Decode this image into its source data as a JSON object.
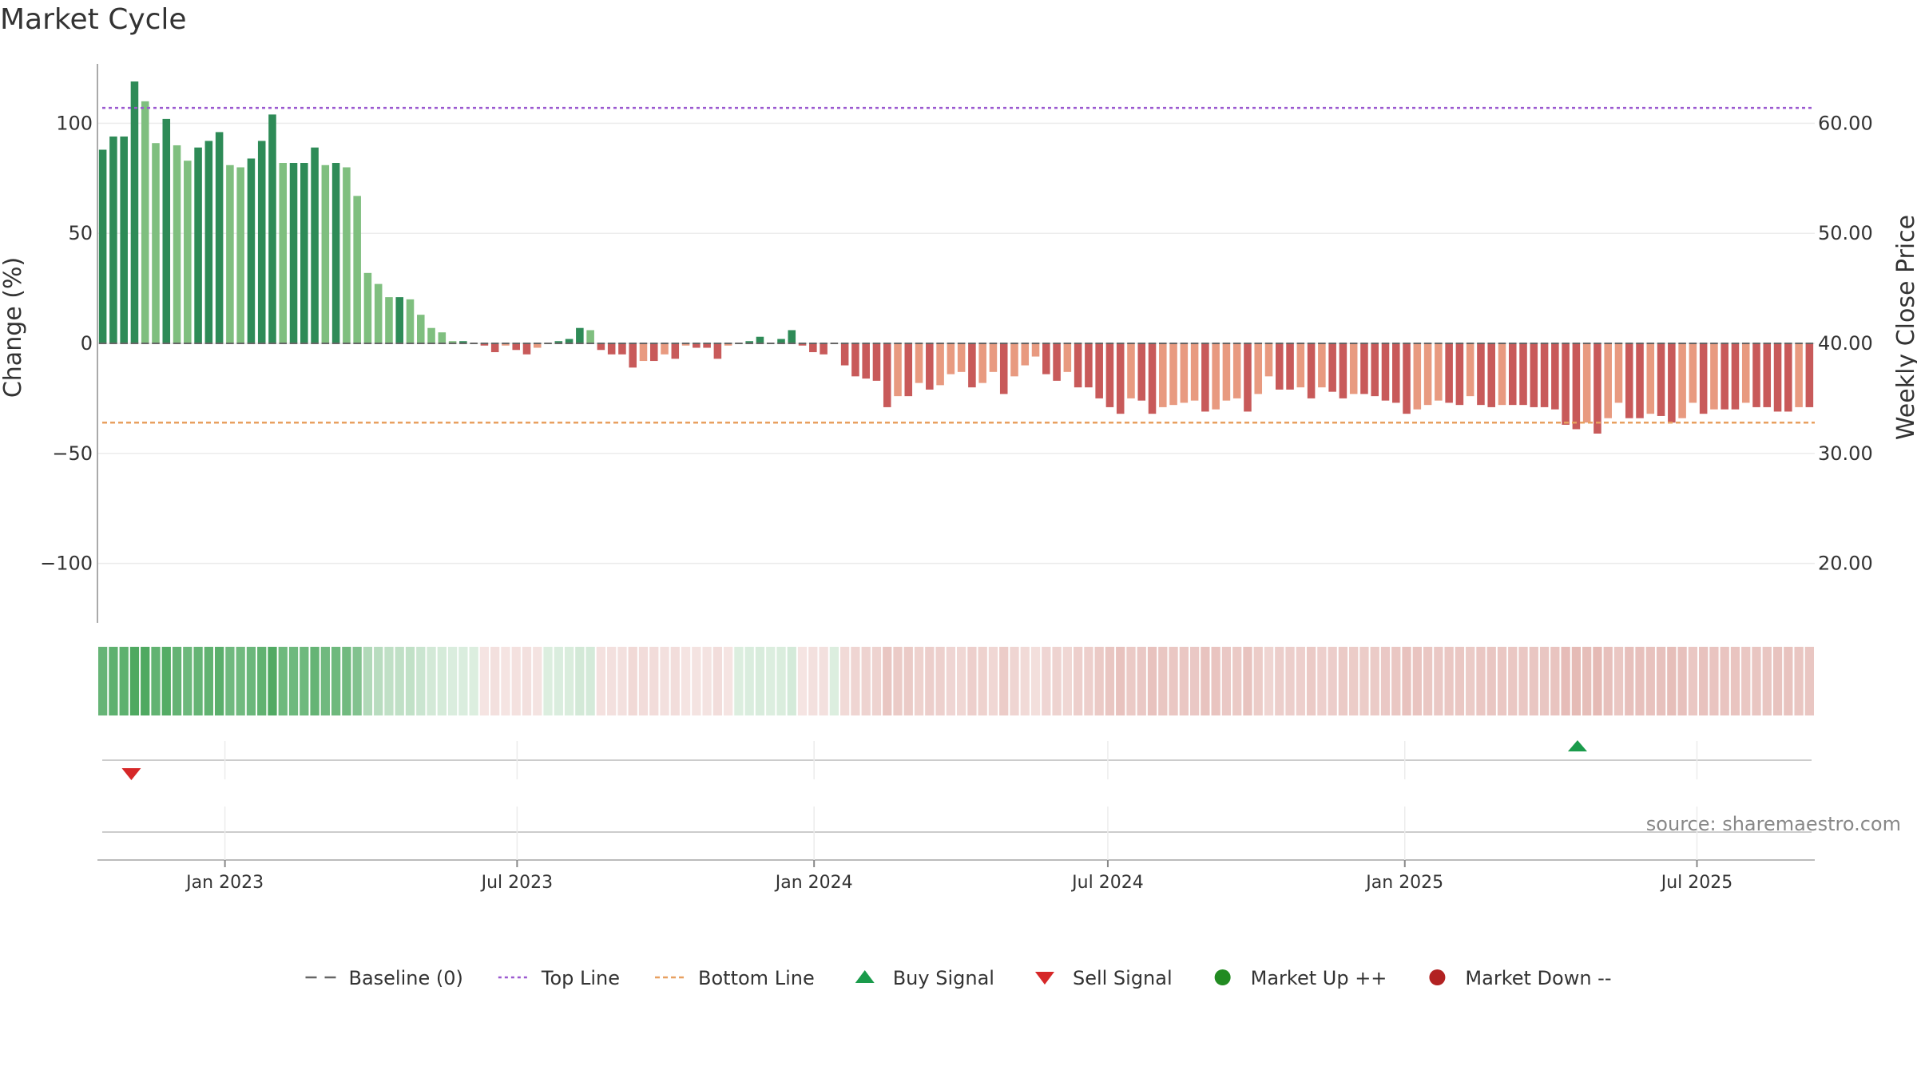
{
  "chart_data": {
    "type": "bar",
    "title": "Market Cycle",
    "ylabel": "Change (%)",
    "y2label": "Weekly Close Price",
    "ylim": [
      -127,
      127
    ],
    "y2lim": [
      14.6,
      65.4
    ],
    "yticks": [
      100,
      50,
      0,
      -50,
      -100
    ],
    "yticks_labels": [
      "100",
      "50",
      "0",
      "−50",
      "−100"
    ],
    "y2ticks": [
      60,
      50,
      40,
      30,
      20
    ],
    "y2ticks_labels": [
      "60.00",
      "50.00",
      "40.00",
      "30.00",
      "20.00"
    ],
    "top_line": 107,
    "bottom_line": -36,
    "baseline": 0,
    "x_start": "2022-10-14",
    "x_end": "2025-09-12",
    "x_step": "weekly",
    "date_ticks": [
      {
        "date": "2023-01-01",
        "label": "Jan 2023"
      },
      {
        "date": "2023-07-01",
        "label": "Jul 2023"
      },
      {
        "date": "2024-01-01",
        "label": "Jan 2024"
      },
      {
        "date": "2024-07-01",
        "label": "Jul 2024"
      },
      {
        "date": "2025-01-01",
        "label": "Jan 2025"
      },
      {
        "date": "2025-07-01",
        "label": "Jul 2025"
      }
    ],
    "values": [
      88,
      94,
      94,
      119,
      110,
      91,
      102,
      90,
      83,
      89,
      92,
      96,
      81,
      80,
      84,
      92,
      104,
      82,
      82,
      82,
      89,
      81,
      82,
      80,
      67,
      32,
      27,
      21,
      21,
      20,
      13,
      7,
      5,
      1,
      1,
      0,
      -1,
      -4,
      -1,
      -3,
      -5,
      -2,
      0,
      1,
      2,
      7,
      6,
      -3,
      -5,
      -5,
      -11,
      -8,
      -8,
      -5,
      -7,
      -1,
      -2,
      -2,
      -7,
      -1,
      0,
      1,
      3,
      0,
      2,
      6,
      -1,
      -4,
      -5,
      0,
      -10,
      -15,
      -16,
      -17,
      -29,
      -24,
      -24,
      -18,
      -21,
      -19,
      -14,
      -13,
      -20,
      -18,
      -13,
      -23,
      -15,
      -10,
      -6,
      -14,
      -17,
      -13,
      -20,
      -20,
      -25,
      -29,
      -32,
      -25,
      -26,
      -32,
      -29,
      -28,
      -27,
      -26,
      -31,
      -30,
      -26,
      -25,
      -31,
      -23,
      -15,
      -21,
      -21,
      -20,
      -25,
      -20,
      -22,
      -25,
      -23,
      -23,
      -24,
      -26,
      -27,
      -32,
      -30,
      -28,
      -26,
      -27,
      -28,
      -24,
      -28,
      -29,
      -28,
      -28,
      -28,
      -29,
      -29,
      -30,
      -37,
      -39,
      -36,
      -41,
      -34,
      -27,
      -34,
      -34,
      -32,
      -33,
      -36,
      -34,
      -27,
      -32,
      -30,
      -30,
      -30,
      -27,
      -29,
      -29,
      -31,
      -31,
      -29,
      -29
    ],
    "sell_signals": [
      {
        "date": "2022-11-04"
      }
    ],
    "buy_signals": [
      {
        "date": "2025-04-18"
      }
    ],
    "source": "source: sharemaestro.com",
    "legend": {
      "placement": "bottom-center",
      "items": [
        {
          "label": "Baseline (0)",
          "marker": "dash",
          "color": "#666666"
        },
        {
          "label": "Top Line",
          "marker": "dotted",
          "color": "#9b59d0"
        },
        {
          "label": "Bottom Line",
          "marker": "dashed",
          "color": "#e8a060"
        },
        {
          "label": "Buy Signal",
          "marker": "triangle-up",
          "color": "#1a9b4b"
        },
        {
          "label": "Sell Signal",
          "marker": "triangle-down",
          "color": "#d62728"
        },
        {
          "label": "Market Up ++",
          "marker": "circle",
          "color": "#228b22"
        },
        {
          "label": "Market Down --",
          "marker": "circle",
          "color": "#b22222"
        }
      ]
    },
    "colors": {
      "up_strong": "#2e8b57",
      "up_light": "#7fbf7f",
      "down_strong": "#c85a5a",
      "down_light": "#e89a80",
      "top_line": "#9b59d0",
      "bottom_line": "#e8a060",
      "baseline": "#666666",
      "buy": "#1a9b4b",
      "sell": "#d62728"
    }
  }
}
